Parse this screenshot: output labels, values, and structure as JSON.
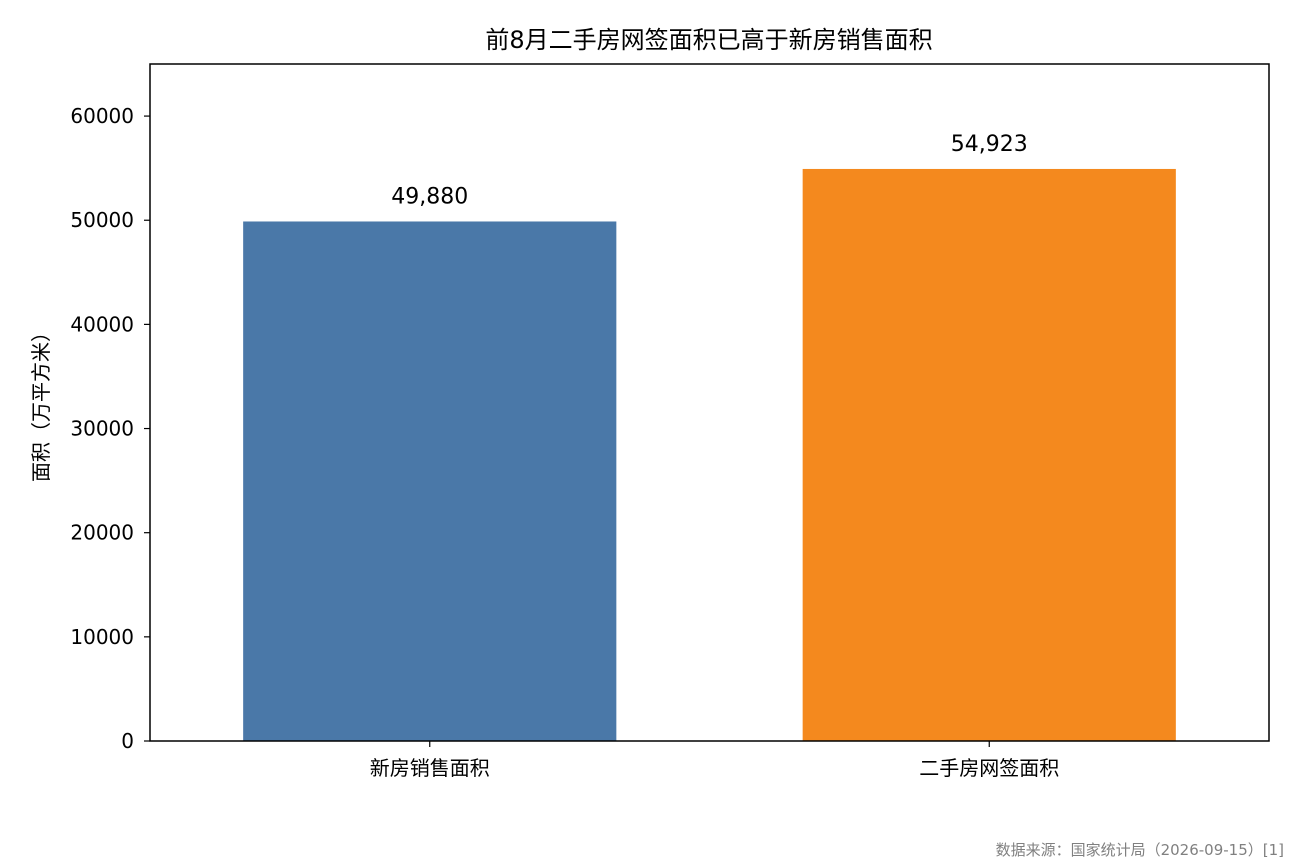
{
  "chart_data": {
    "type": "bar",
    "title": "前8月二手房网签面积已高于新房销售面积",
    "xlabel": "",
    "ylabel": "面积（万平方米）",
    "categories": [
      "新房销售面积",
      "二手房网签面积"
    ],
    "values": [
      49880,
      54923
    ],
    "data_labels": [
      "49,880",
      "54,923"
    ],
    "colors": [
      "#4a78a8",
      "#f4891e"
    ],
    "ylim": [
      0,
      65000
    ],
    "yticks": [
      0,
      10000,
      20000,
      30000,
      40000,
      50000,
      60000
    ],
    "ytick_labels": [
      "0",
      "10000",
      "20000",
      "30000",
      "40000",
      "50000",
      "60000"
    ],
    "grid": false,
    "legend": "none"
  },
  "source_note": "数据来源：国家统计局（2026-09-15）[1]"
}
